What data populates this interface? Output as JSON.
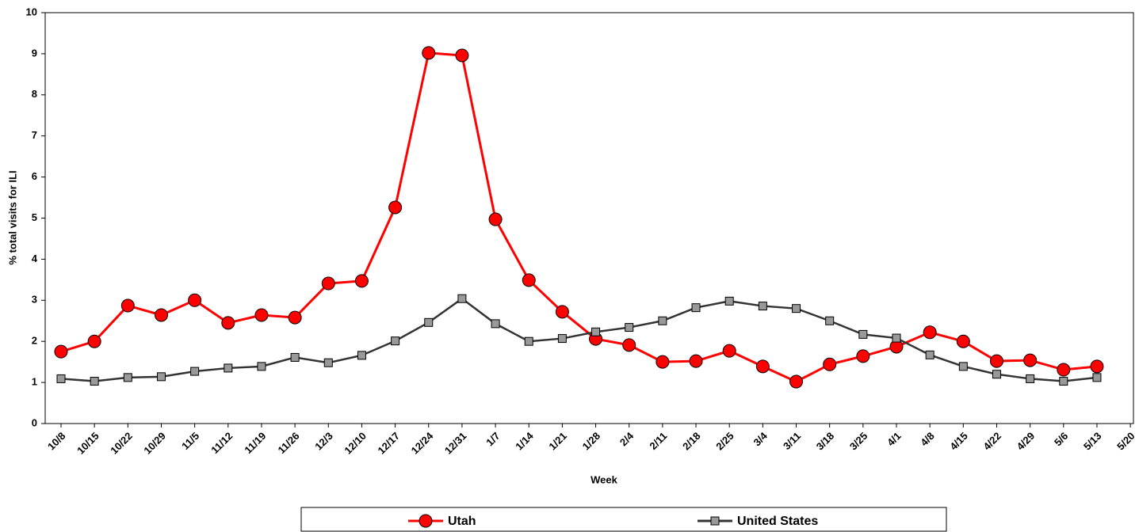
{
  "chart_data": {
    "type": "line",
    "x_label": "Week",
    "y_label": "% total visits for ILI",
    "categories": [
      "10/8",
      "10/15",
      "10/22",
      "10/29",
      "11/5",
      "11/12",
      "11/19",
      "11/26",
      "12/3",
      "12/10",
      "12/17",
      "12/24",
      "12/31",
      "1/7",
      "1/14",
      "1/21",
      "1/28",
      "2/4",
      "2/11",
      "2/18",
      "2/25",
      "3/4",
      "3/11",
      "3/18",
      "3/25",
      "4/1",
      "4/8",
      "4/15",
      "4/22",
      "4/29",
      "5/6",
      "5/13",
      "5/20"
    ],
    "series": [
      {
        "name": "Utah",
        "color": "#ff0000",
        "marker": "circle",
        "marker_color": "#ff0000",
        "values": [
          1.75,
          2.0,
          2.87,
          2.64,
          3.0,
          2.45,
          2.64,
          2.58,
          3.41,
          3.47,
          5.26,
          9.02,
          8.96,
          4.97,
          3.49,
          2.72,
          2.06,
          1.91,
          1.5,
          1.52,
          1.77,
          1.39,
          1.02,
          1.44,
          1.64,
          1.87,
          2.22,
          2.0,
          1.52,
          1.54,
          1.31,
          1.39,
          null
        ]
      },
      {
        "name": "United States",
        "color": "#333333",
        "marker": "square",
        "marker_color": "#999999",
        "values": [
          1.09,
          1.03,
          1.12,
          1.14,
          1.27,
          1.35,
          1.39,
          1.61,
          1.48,
          1.66,
          2.01,
          2.46,
          3.04,
          2.43,
          2.0,
          2.07,
          2.23,
          2.34,
          2.5,
          2.82,
          2.98,
          2.86,
          2.8,
          2.5,
          2.17,
          2.08,
          1.67,
          1.39,
          1.2,
          1.09,
          1.03,
          1.12,
          null
        ]
      }
    ],
    "ylim": [
      0,
      10
    ],
    "yticks": [
      0,
      1,
      2,
      3,
      4,
      5,
      6,
      7,
      8,
      9,
      10
    ],
    "legend": "bottom"
  }
}
